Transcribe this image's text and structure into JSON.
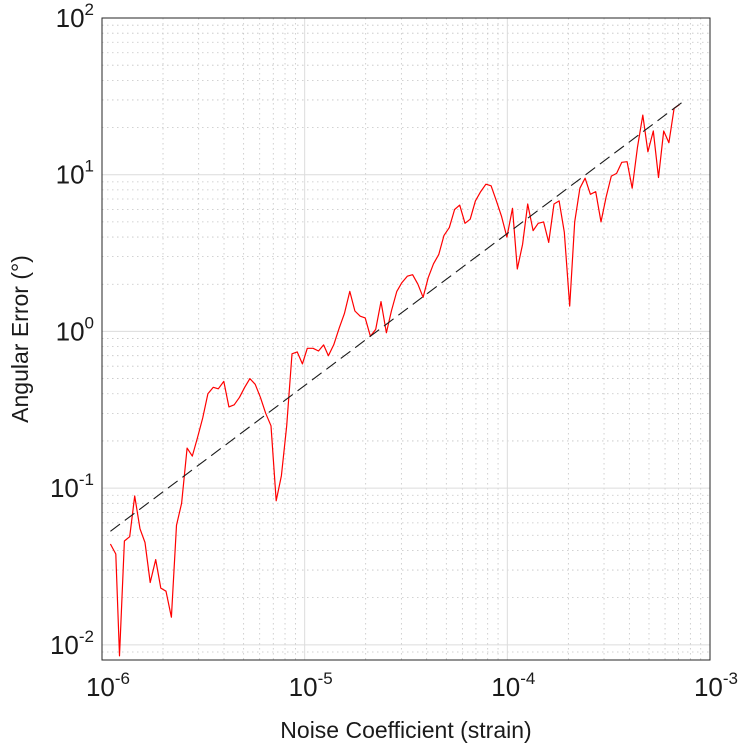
{
  "chart_data": {
    "type": "line",
    "title": "",
    "xlabel": "Noise Coefficient (strain)",
    "ylabel": "Angular Error (°)",
    "x_scale": "log",
    "y_scale": "log",
    "xlim": [
      1e-06,
      0.001
    ],
    "ylim": [
      0.008,
      100
    ],
    "grid": true,
    "minor_grid": true,
    "legend": "none",
    "x_ticks": [
      {
        "base": "10",
        "exp": "-6",
        "value": 1e-06
      },
      {
        "base": "10",
        "exp": "-5",
        "value": 1e-05
      },
      {
        "base": "10",
        "exp": "-4",
        "value": 0.0001
      },
      {
        "base": "10",
        "exp": "-3",
        "value": 0.001
      }
    ],
    "y_ticks": [
      {
        "base": "10",
        "exp": "-2",
        "value": 0.01
      },
      {
        "base": "10",
        "exp": "-1",
        "value": 0.1
      },
      {
        "base": "10",
        "exp": "0",
        "value": 1
      },
      {
        "base": "10",
        "exp": "1",
        "value": 10
      },
      {
        "base": "10",
        "exp": "2",
        "value": 100
      }
    ],
    "series": [
      {
        "style": "solid",
        "color": "#ff0000",
        "points": [
          [
            1.1e-06,
            0.044
          ],
          [
            1.17e-06,
            0.038
          ],
          [
            1.22e-06,
            0.0085
          ],
          [
            1.29e-06,
            0.046
          ],
          [
            1.37e-06,
            0.049
          ],
          [
            1.45e-06,
            0.089
          ],
          [
            1.54e-06,
            0.055
          ],
          [
            1.63e-06,
            0.045
          ],
          [
            1.73e-06,
            0.025
          ],
          [
            1.84e-06,
            0.035
          ],
          [
            1.95e-06,
            0.023
          ],
          [
            2.07e-06,
            0.022
          ],
          [
            2.2e-06,
            0.015
          ],
          [
            2.33e-06,
            0.058
          ],
          [
            2.47e-06,
            0.08
          ],
          [
            2.63e-06,
            0.18
          ],
          [
            2.79e-06,
            0.16
          ],
          [
            2.96e-06,
            0.21
          ],
          [
            3.14e-06,
            0.28
          ],
          [
            3.33e-06,
            0.4
          ],
          [
            3.54e-06,
            0.44
          ],
          [
            3.75e-06,
            0.43
          ],
          [
            3.99e-06,
            0.48
          ],
          [
            4.23e-06,
            0.33
          ],
          [
            4.49e-06,
            0.34
          ],
          [
            4.77e-06,
            0.38
          ],
          [
            5.06e-06,
            0.44
          ],
          [
            5.37e-06,
            0.5
          ],
          [
            5.7e-06,
            0.46
          ],
          [
            6.05e-06,
            0.38
          ],
          [
            6.42e-06,
            0.3
          ],
          [
            6.82e-06,
            0.25
          ],
          [
            7.24e-06,
            0.083
          ],
          [
            7.68e-06,
            0.12
          ],
          [
            8.15e-06,
            0.25
          ],
          [
            8.66e-06,
            0.72
          ],
          [
            9.19e-06,
            0.74
          ],
          [
            9.75e-06,
            0.62
          ],
          [
            1.03e-05,
            0.78
          ],
          [
            1.1e-05,
            0.78
          ],
          [
            1.17e-05,
            0.75
          ],
          [
            1.24e-05,
            0.82
          ],
          [
            1.31e-05,
            0.7
          ],
          [
            1.39e-05,
            0.82
          ],
          [
            1.48e-05,
            1.05
          ],
          [
            1.57e-05,
            1.3
          ],
          [
            1.67e-05,
            1.8
          ],
          [
            1.77e-05,
            1.35
          ],
          [
            1.88e-05,
            1.25
          ],
          [
            1.99e-05,
            1.22
          ],
          [
            2.11e-05,
            0.93
          ],
          [
            2.24e-05,
            1.03
          ],
          [
            2.38e-05,
            1.55
          ],
          [
            2.53e-05,
            0.98
          ],
          [
            2.68e-05,
            1.35
          ],
          [
            2.85e-05,
            1.8
          ],
          [
            3.02e-05,
            2.05
          ],
          [
            3.21e-05,
            2.25
          ],
          [
            3.41e-05,
            2.3
          ],
          [
            3.62e-05,
            2.0
          ],
          [
            3.84e-05,
            1.65
          ],
          [
            4.07e-05,
            2.2
          ],
          [
            4.32e-05,
            2.7
          ],
          [
            4.59e-05,
            3.1
          ],
          [
            4.87e-05,
            4.1
          ],
          [
            5.17e-05,
            4.6
          ],
          [
            5.49e-05,
            6.0
          ],
          [
            5.82e-05,
            6.4
          ],
          [
            6.18e-05,
            4.9
          ],
          [
            6.56e-05,
            5.2
          ],
          [
            6.96e-05,
            6.8
          ],
          [
            7.39e-05,
            7.8
          ],
          [
            7.84e-05,
            8.7
          ],
          [
            8.32e-05,
            8.5
          ],
          [
            8.83e-05,
            6.8
          ],
          [
            9.37e-05,
            5.4
          ],
          [
            9.95e-05,
            4.0
          ],
          [
            0.000106,
            6.1
          ],
          [
            0.000112,
            2.5
          ],
          [
            0.000119,
            3.6
          ],
          [
            0.000126,
            6.5
          ],
          [
            0.000134,
            4.4
          ],
          [
            0.000142,
            4.9
          ],
          [
            0.000151,
            5.0
          ],
          [
            0.00016,
            3.7
          ],
          [
            0.00017,
            6.5
          ],
          [
            0.00018,
            6.8
          ],
          [
            0.000191,
            4.3
          ],
          [
            0.000203,
            1.45
          ],
          [
            0.000215,
            5.0
          ],
          [
            0.000228,
            8.2
          ],
          [
            0.000242,
            9.5
          ],
          [
            0.000257,
            7.5
          ],
          [
            0.000273,
            7.8
          ],
          [
            0.00029,
            5.0
          ],
          [
            0.000307,
            7.2
          ],
          [
            0.000326,
            9.8
          ],
          [
            0.000346,
            10.2
          ],
          [
            0.000367,
            12.0
          ],
          [
            0.00039,
            12.1
          ],
          [
            0.000413,
            8.2
          ],
          [
            0.000439,
            15.0
          ],
          [
            0.000466,
            24.0
          ],
          [
            0.000494,
            14.0
          ],
          [
            0.000525,
            19.0
          ],
          [
            0.000557,
            9.6
          ],
          [
            0.000591,
            19.0
          ],
          [
            0.000627,
            16.0
          ],
          [
            0.000665,
            26.5
          ],
          [
            0.000706,
            28.0
          ]
        ]
      },
      {
        "style": "dashed",
        "color": "#1a1a1a",
        "points": [
          [
            1.1e-06,
            0.053
          ],
          [
            0.00073,
            29.0
          ]
        ]
      }
    ]
  }
}
